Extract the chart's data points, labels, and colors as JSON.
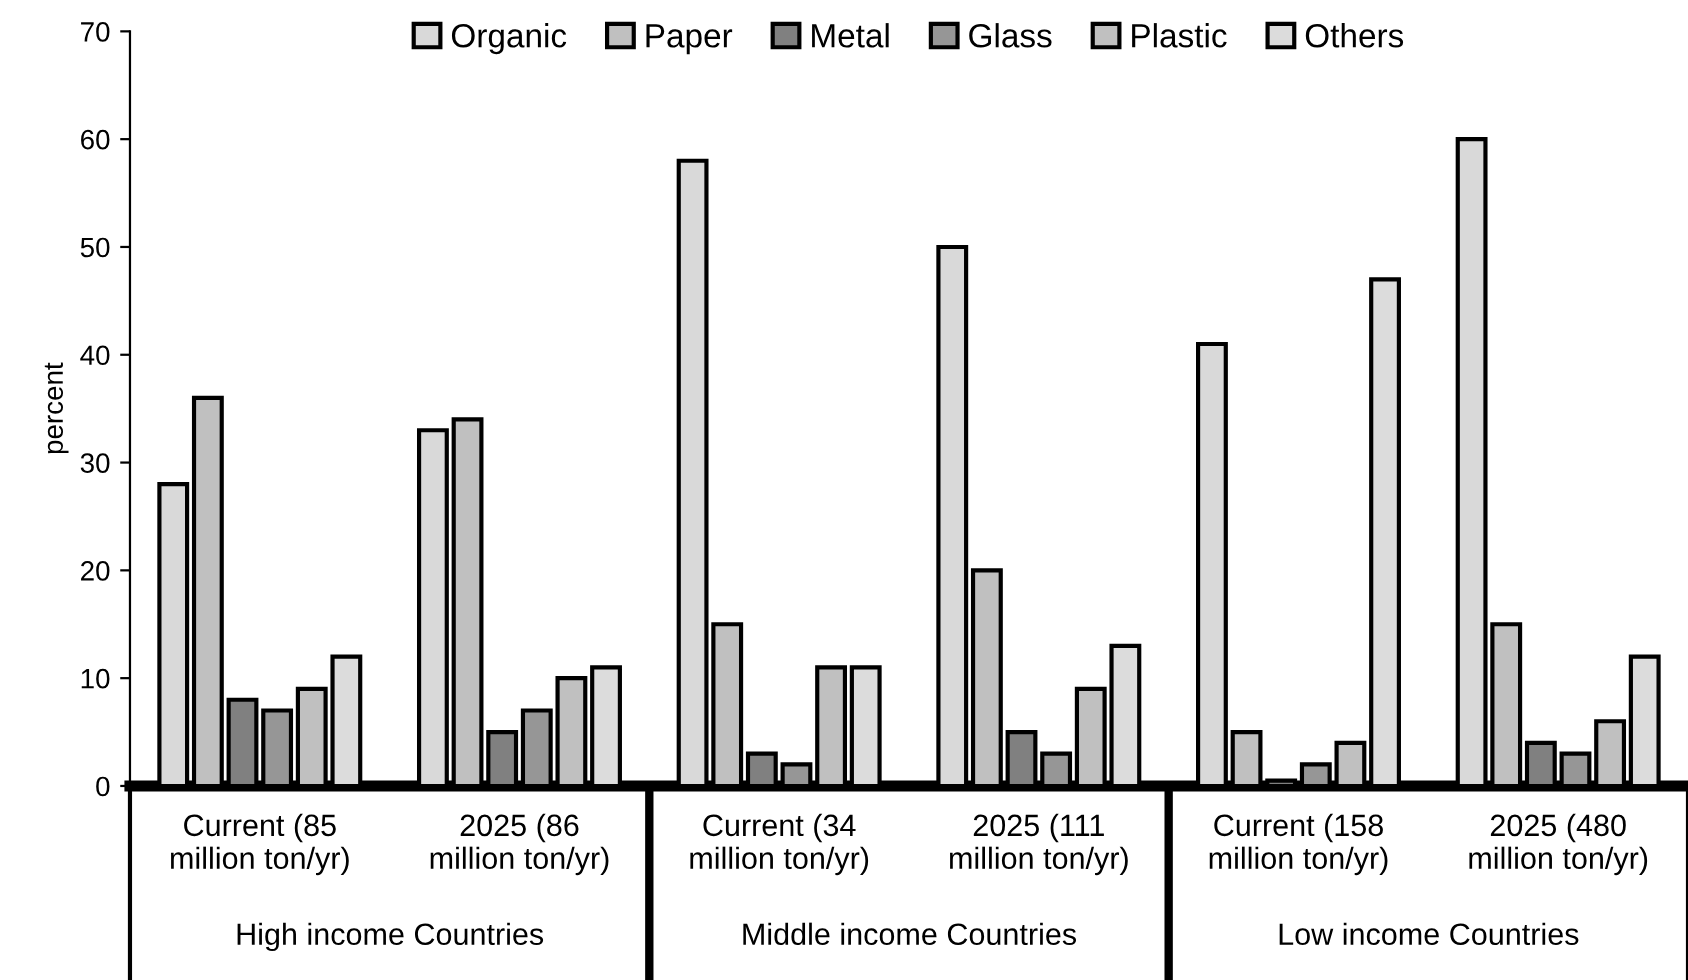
{
  "chart_data": {
    "type": "bar",
    "ylabel": "percent",
    "categories": [
      "Current (85\nmillion ton/yr)",
      "2025 (86\nmillion ton/yr)",
      "Current (34\nmillion ton/yr)",
      "2025 (111\nmillion ton/yr)",
      "Current (158\nmillion ton/yr)",
      "2025 (480\nmillion ton/yr)"
    ],
    "annotations": [
      "High income Countries",
      "Middle income Countries",
      "Low income Countries"
    ],
    "series": [
      {
        "name": "Organic",
        "color": "#d9d9d9",
        "values": [
          28,
          33,
          58,
          50,
          41,
          60
        ]
      },
      {
        "name": "Paper",
        "color": "#c0c0c0",
        "values": [
          36,
          34,
          15,
          20,
          5,
          15
        ]
      },
      {
        "name": "Metal",
        "color": "#808080",
        "values": [
          8,
          5,
          3,
          5,
          0.5,
          4
        ]
      },
      {
        "name": "Glass",
        "color": "#969696",
        "values": [
          7,
          7,
          2,
          3,
          2,
          3
        ]
      },
      {
        "name": "Plastic",
        "color": "#c0c0c0",
        "values": [
          9,
          10,
          11,
          9,
          4,
          6
        ]
      },
      {
        "name": "Others",
        "color": "#dcdcdc",
        "values": [
          12,
          11,
          11,
          13,
          47,
          12
        ]
      }
    ],
    "ylim": [
      0,
      70
    ],
    "yticks": [
      0,
      10,
      20,
      30,
      40,
      50,
      60,
      70
    ],
    "grid": false,
    "legend": "top"
  }
}
